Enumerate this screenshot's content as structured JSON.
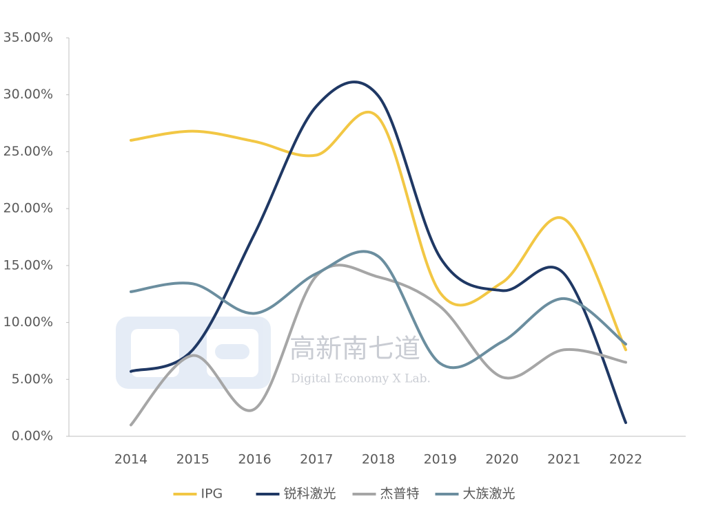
{
  "chart_data": {
    "type": "line",
    "categories": [
      "2014",
      "2015",
      "2016",
      "2017",
      "2018",
      "2019",
      "2020",
      "2021",
      "2022"
    ],
    "series": [
      {
        "name": "IPG",
        "color": "#f2c744",
        "values": [
          26.0,
          26.8,
          25.9,
          24.7,
          28.0,
          12.6,
          13.5,
          19.1,
          7.6
        ]
      },
      {
        "name": "锐科激光",
        "color": "#1f3864",
        "values": [
          5.7,
          7.6,
          17.8,
          29.0,
          29.9,
          15.7,
          12.8,
          14.3,
          1.2
        ]
      },
      {
        "name": "杰普特",
        "color": "#a6a6a6",
        "values": [
          1.0,
          7.1,
          2.4,
          14.1,
          14.0,
          11.4,
          5.2,
          7.6,
          6.5
        ]
      },
      {
        "name": "大族激光",
        "color": "#6b8e9f",
        "values": [
          12.7,
          13.4,
          10.8,
          14.3,
          15.8,
          6.4,
          8.3,
          12.1,
          8.1
        ]
      }
    ],
    "ylim": [
      0,
      35
    ],
    "yticks": [
      {
        "value": 0,
        "label": "0.00%"
      },
      {
        "value": 5,
        "label": "5.00%"
      },
      {
        "value": 10,
        "label": "10.00%"
      },
      {
        "value": 15,
        "label": "15.00%"
      },
      {
        "value": 20,
        "label": "20.00%"
      },
      {
        "value": 25,
        "label": "25.00%"
      },
      {
        "value": 30,
        "label": "30.00%"
      },
      {
        "value": 35,
        "label": "35.00%"
      }
    ],
    "grid": false,
    "smooth": true,
    "legend": "bottom",
    "watermark_title": "高新南七道",
    "watermark_subtitle": "Digital Economy X Lab."
  }
}
